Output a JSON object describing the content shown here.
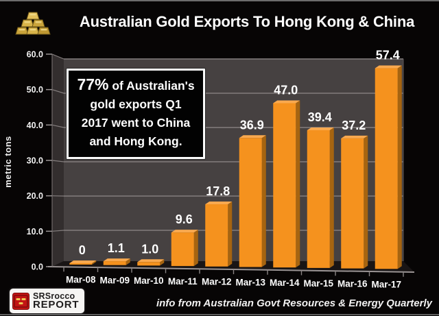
{
  "header": {
    "title": "Australian Gold Exports To Hong Kong & China",
    "icon": "gold-bars-icon"
  },
  "annotation": {
    "highlight": "77%",
    "line1": " of Australian's",
    "line2": "gold exports Q1",
    "line3": "2017 went to China",
    "line4": "and Hong Kong."
  },
  "chart_data": {
    "type": "bar",
    "title": "Australian Gold Exports To Hong Kong & China",
    "categories": [
      "Mar-08",
      "Mar-09",
      "Mar-10",
      "Mar-11",
      "Mar-12",
      "Mar-13",
      "Mar-14",
      "Mar-15",
      "Mar-16",
      "Mar-17"
    ],
    "values": [
      0,
      1.1,
      1.0,
      9.6,
      17.8,
      36.9,
      47.0,
      39.4,
      37.2,
      57.4
    ],
    "value_labels": [
      "0",
      "1.1",
      "1.0",
      "9.6",
      "17.8",
      "36.9",
      "47.0",
      "39.4",
      "37.2",
      "57.4"
    ],
    "xlabel": "",
    "ylabel": "metric tons",
    "ylim": [
      0,
      60
    ],
    "ytick_step": 10,
    "ytick_labels": [
      "0.0",
      "10.0",
      "20.0",
      "30.0",
      "40.0",
      "50.0",
      "60.0"
    ],
    "grid": true,
    "legend": "none",
    "style": "3d-bars-dark",
    "colors": {
      "bar": "#F5921E",
      "bar_top": "#F9A94F",
      "bar_side": "#A66410",
      "wall": "#464141",
      "side_wall": "#332E2E",
      "floor": "#191515",
      "gridline": "#847E7E",
      "axis": "#9A9494",
      "background": "#070505",
      "label": "#FFFFFF"
    }
  },
  "footer": {
    "logo": {
      "line1": "SRSrocco",
      "line2": "REPORT",
      "icon": "gold-crate-icon"
    },
    "source_note": "info from Australian Govt Resources & Energy Quarterly"
  }
}
